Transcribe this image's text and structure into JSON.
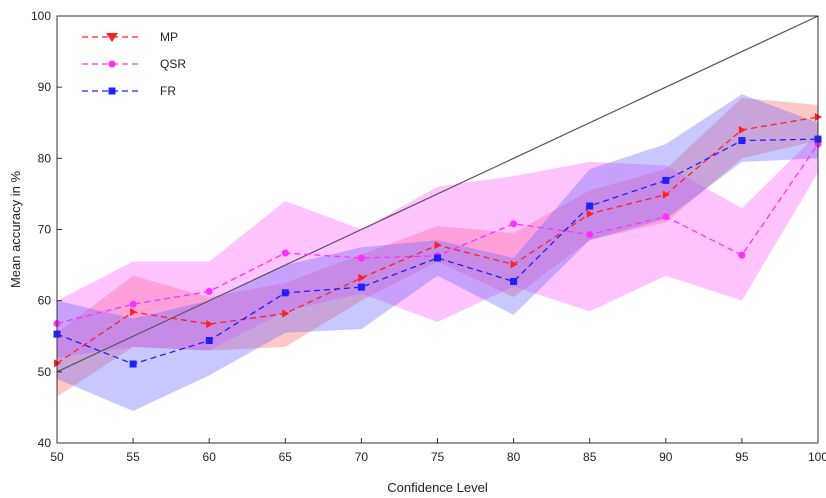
{
  "chart_data": {
    "type": "line",
    "xlabel": "Confidence Level",
    "ylabel": "Mean accuracy in %",
    "xlim": [
      50,
      100
    ],
    "ylim": [
      40,
      100
    ],
    "x_ticks": [
      "50",
      "55",
      "60",
      "65",
      "70",
      "75",
      "80",
      "85",
      "90",
      "95",
      "100"
    ],
    "y_ticks": [
      "40",
      "50",
      "60",
      "70",
      "80",
      "90",
      "100"
    ],
    "x": [
      50,
      55,
      60,
      65,
      70,
      75,
      80,
      85,
      90,
      95,
      100
    ],
    "reference_line": {
      "from": [
        50,
        50
      ],
      "to": [
        100,
        100
      ],
      "color": "#555555"
    },
    "legend_position": "top-left",
    "grid": false,
    "series": [
      {
        "name": "MP",
        "color": "#ff2020",
        "band_color": "#ff6060",
        "marker": "triangle",
        "values": [
          51.2,
          58.4,
          56.7,
          58.2,
          63.2,
          67.8,
          65.1,
          72.2,
          74.9,
          84.0,
          85.8
        ],
        "lower": [
          46.5,
          53.5,
          53.0,
          53.5,
          60.0,
          65.5,
          60.5,
          68.5,
          71.0,
          80.0,
          82.5
        ],
        "upper": [
          55.5,
          63.5,
          60.5,
          62.5,
          66.5,
          70.5,
          69.5,
          75.5,
          78.5,
          88.5,
          87.5
        ]
      },
      {
        "name": "QSR",
        "color": "#ff30ff",
        "band_color": "#ff55ff",
        "marker": "circle",
        "values": [
          56.8,
          59.5,
          61.3,
          66.7,
          66.0,
          66.3,
          70.8,
          69.3,
          71.8,
          66.4,
          82.0
        ],
        "lower": [
          52.0,
          53.5,
          53.0,
          58.5,
          61.0,
          57.0,
          62.0,
          58.5,
          63.5,
          60.0,
          78.0
        ],
        "upper": [
          60.0,
          65.5,
          65.5,
          74.0,
          70.0,
          76.0,
          77.5,
          79.5,
          79.0,
          73.0,
          83.5
        ]
      },
      {
        "name": "FR",
        "color": "#2020ff",
        "band_color": "#6060ff",
        "marker": "square",
        "values": [
          55.3,
          51.1,
          54.4,
          61.1,
          61.9,
          66.0,
          62.7,
          73.3,
          76.9,
          82.5,
          82.7
        ],
        "lower": [
          49.0,
          44.5,
          49.5,
          55.5,
          56.0,
          63.5,
          58.0,
          68.5,
          71.5,
          79.5,
          80.0
        ],
        "upper": [
          60.0,
          57.5,
          60.0,
          65.0,
          67.5,
          68.5,
          66.0,
          78.5,
          82.0,
          89.0,
          85.0
        ]
      }
    ]
  }
}
